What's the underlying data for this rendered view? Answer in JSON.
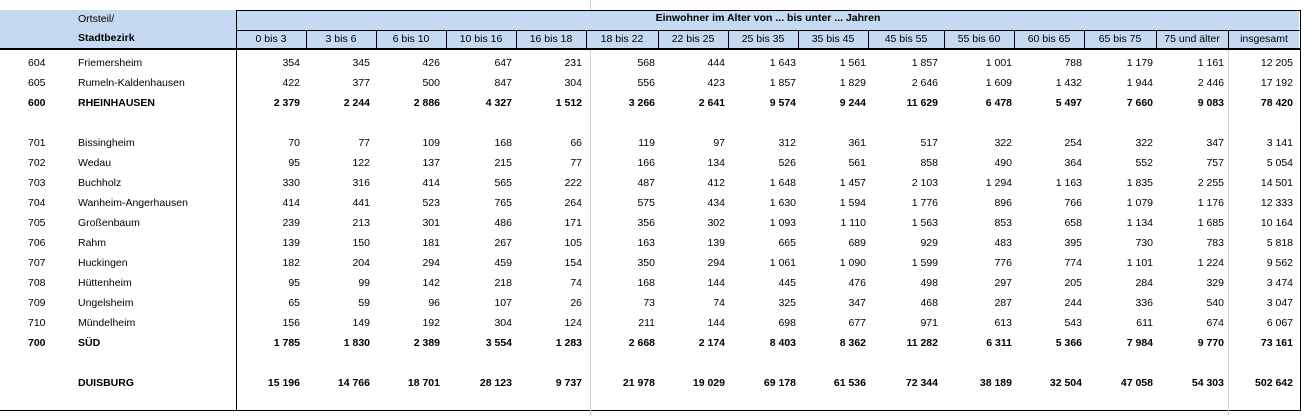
{
  "header": {
    "ortsteil_label": "Ortsteil/",
    "stadtbezirk_label": "Stadtbezirk",
    "group_title": "Einwohner im Alter von ... bis unter ... Jahren",
    "age_columns": [
      "0 bis 3",
      "3 bis 6",
      "6 bis 10",
      "10 bis 16",
      "16 bis 18",
      "18 bis 22",
      "22 bis 25",
      "25 bis 35",
      "35 bis 45",
      "45 bis 55",
      "55 bis 60",
      "60 bis 65",
      "65 bis 75",
      "75 und älter",
      "insgesamt"
    ]
  },
  "rows": [
    {
      "code": "604",
      "name": "Friemersheim",
      "bold": false,
      "values": [
        "354",
        "345",
        "426",
        "647",
        "231",
        "568",
        "444",
        "1 643",
        "1 561",
        "1 857",
        "1 001",
        "788",
        "1 179",
        "1 161",
        "12 205"
      ]
    },
    {
      "code": "605",
      "name": "Rumeln-Kaldenhausen",
      "bold": false,
      "values": [
        "422",
        "377",
        "500",
        "847",
        "304",
        "556",
        "423",
        "1 857",
        "1 829",
        "2 646",
        "1 609",
        "1 432",
        "1 944",
        "2 446",
        "17 192"
      ]
    },
    {
      "code": "600",
      "name": "RHEINHAUSEN",
      "bold": true,
      "values": [
        "2 379",
        "2 244",
        "2 886",
        "4 327",
        "1 512",
        "3 266",
        "2 641",
        "9 574",
        "9 244",
        "11 629",
        "6 478",
        "5 497",
        "7 660",
        "9 083",
        "78 420"
      ]
    },
    {
      "code": "701",
      "name": "Bissingheim",
      "bold": false,
      "values": [
        "70",
        "77",
        "109",
        "168",
        "66",
        "119",
        "97",
        "312",
        "361",
        "517",
        "322",
        "254",
        "322",
        "347",
        "3 141"
      ]
    },
    {
      "code": "702",
      "name": "Wedau",
      "bold": false,
      "values": [
        "95",
        "122",
        "137",
        "215",
        "77",
        "166",
        "134",
        "526",
        "561",
        "858",
        "490",
        "364",
        "552",
        "757",
        "5 054"
      ]
    },
    {
      "code": "703",
      "name": "Buchholz",
      "bold": false,
      "values": [
        "330",
        "316",
        "414",
        "565",
        "222",
        "487",
        "412",
        "1 648",
        "1 457",
        "2 103",
        "1 294",
        "1 163",
        "1 835",
        "2 255",
        "14 501"
      ]
    },
    {
      "code": "704",
      "name": "Wanheim-Angerhausen",
      "bold": false,
      "values": [
        "414",
        "441",
        "523",
        "765",
        "264",
        "575",
        "434",
        "1 630",
        "1 594",
        "1 776",
        "896",
        "766",
        "1 079",
        "1 176",
        "12 333"
      ]
    },
    {
      "code": "705",
      "name": "Großenbaum",
      "bold": false,
      "values": [
        "239",
        "213",
        "301",
        "486",
        "171",
        "356",
        "302",
        "1 093",
        "1 110",
        "1 563",
        "853",
        "658",
        "1 134",
        "1 685",
        "10 164"
      ]
    },
    {
      "code": "706",
      "name": "Rahm",
      "bold": false,
      "values": [
        "139",
        "150",
        "181",
        "267",
        "105",
        "163",
        "139",
        "665",
        "689",
        "929",
        "483",
        "395",
        "730",
        "783",
        "5 818"
      ]
    },
    {
      "code": "707",
      "name": "Huckingen",
      "bold": false,
      "values": [
        "182",
        "204",
        "294",
        "459",
        "154",
        "350",
        "294",
        "1 061",
        "1 090",
        "1 599",
        "776",
        "774",
        "1 101",
        "1 224",
        "9 562"
      ]
    },
    {
      "code": "708",
      "name": "Hüttenheim",
      "bold": false,
      "values": [
        "95",
        "99",
        "142",
        "218",
        "74",
        "168",
        "144",
        "445",
        "476",
        "498",
        "297",
        "205",
        "284",
        "329",
        "3 474"
      ]
    },
    {
      "code": "709",
      "name": "Ungelsheim",
      "bold": false,
      "values": [
        "65",
        "59",
        "96",
        "107",
        "26",
        "73",
        "74",
        "325",
        "347",
        "468",
        "287",
        "244",
        "336",
        "540",
        "3 047"
      ]
    },
    {
      "code": "710",
      "name": "Mündelheim",
      "bold": false,
      "values": [
        "156",
        "149",
        "192",
        "304",
        "124",
        "211",
        "144",
        "698",
        "677",
        "971",
        "613",
        "543",
        "611",
        "674",
        "6 067"
      ]
    },
    {
      "code": "700",
      "name": "SÜD",
      "bold": true,
      "values": [
        "1 785",
        "1 830",
        "2 389",
        "3 554",
        "1 283",
        "2 668",
        "2 174",
        "8 403",
        "8 362",
        "11 282",
        "6 311",
        "5 366",
        "7 984",
        "9 770",
        "73 161"
      ]
    },
    {
      "code": "",
      "name": "DUISBURG",
      "bold": true,
      "values": [
        "15 196",
        "14 766",
        "18 701",
        "28 123",
        "9 737",
        "21 978",
        "19 029",
        "69 178",
        "61 536",
        "72 344",
        "38 189",
        "32 504",
        "47 058",
        "54 303",
        "502 642"
      ]
    }
  ]
}
